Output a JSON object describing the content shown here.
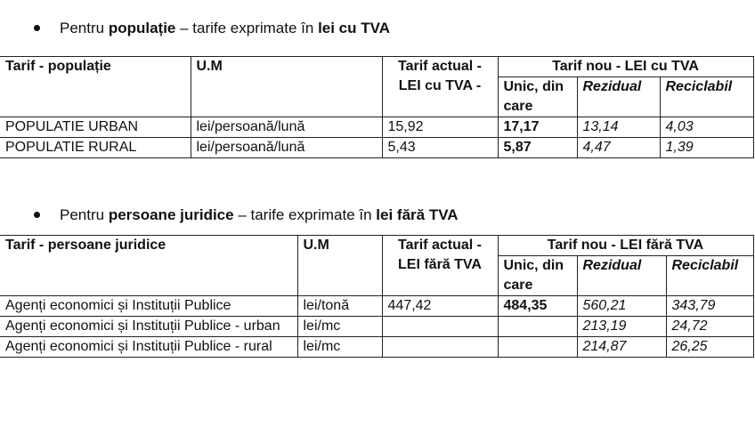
{
  "section1": {
    "prefix": "Pentru ",
    "bold1": "populație",
    "middle": " – tarife exprimate în ",
    "bold2": "lei cu TVA"
  },
  "table1": {
    "header": {
      "col1": "Tarif - populație",
      "col2": "U.M",
      "col3": "Tarif actual - LEI cu TVA -",
      "group": "Tarif nou - LEI cu TVA",
      "sub1": "Unic, din care",
      "sub2": "Rezidual",
      "sub3": "Reciclabil"
    },
    "rows": [
      {
        "name": "POPULATIE URBAN",
        "um": "lei/persoană/lună",
        "actual": "15,92",
        "unic": "17,17",
        "rezidual": "13,14",
        "reciclabil": "4,03"
      },
      {
        "name": "POPULATIE RURAL",
        "um": "lei/persoană/lună",
        "actual": "5,43",
        "unic": "5,87",
        "rezidual": "4,47",
        "reciclabil": "1,39"
      }
    ]
  },
  "section2": {
    "prefix": "Pentru ",
    "bold1": "persoane juridice",
    "middle": " – tarife exprimate în ",
    "bold2": "lei fără TVA"
  },
  "table2": {
    "header": {
      "col1": "Tarif - persoane juridice",
      "col2": "U.M",
      "col3": "Tarif actual - LEI fără TVA",
      "group": "Tarif nou - LEI fără TVA",
      "sub1": "Unic, din care",
      "sub2": "Rezidual",
      "sub3": "Reciclabil"
    },
    "rows": [
      {
        "name": "Agenți economici și Instituții Publice",
        "um": "lei/tonă",
        "actual": "447,42",
        "unic": "484,35",
        "rezidual": "560,21",
        "reciclabil": "343,79"
      },
      {
        "name": "Agenți economici și Instituții Publice - urban",
        "um": "lei/mc",
        "actual": "",
        "unic": "",
        "rezidual": "213,19",
        "reciclabil": "24,72"
      },
      {
        "name": "Agenți economici și Instituții Publice - rural",
        "um": "lei/mc",
        "actual": "",
        "unic": "",
        "rezidual": "214,87",
        "reciclabil": "26,25"
      }
    ]
  }
}
